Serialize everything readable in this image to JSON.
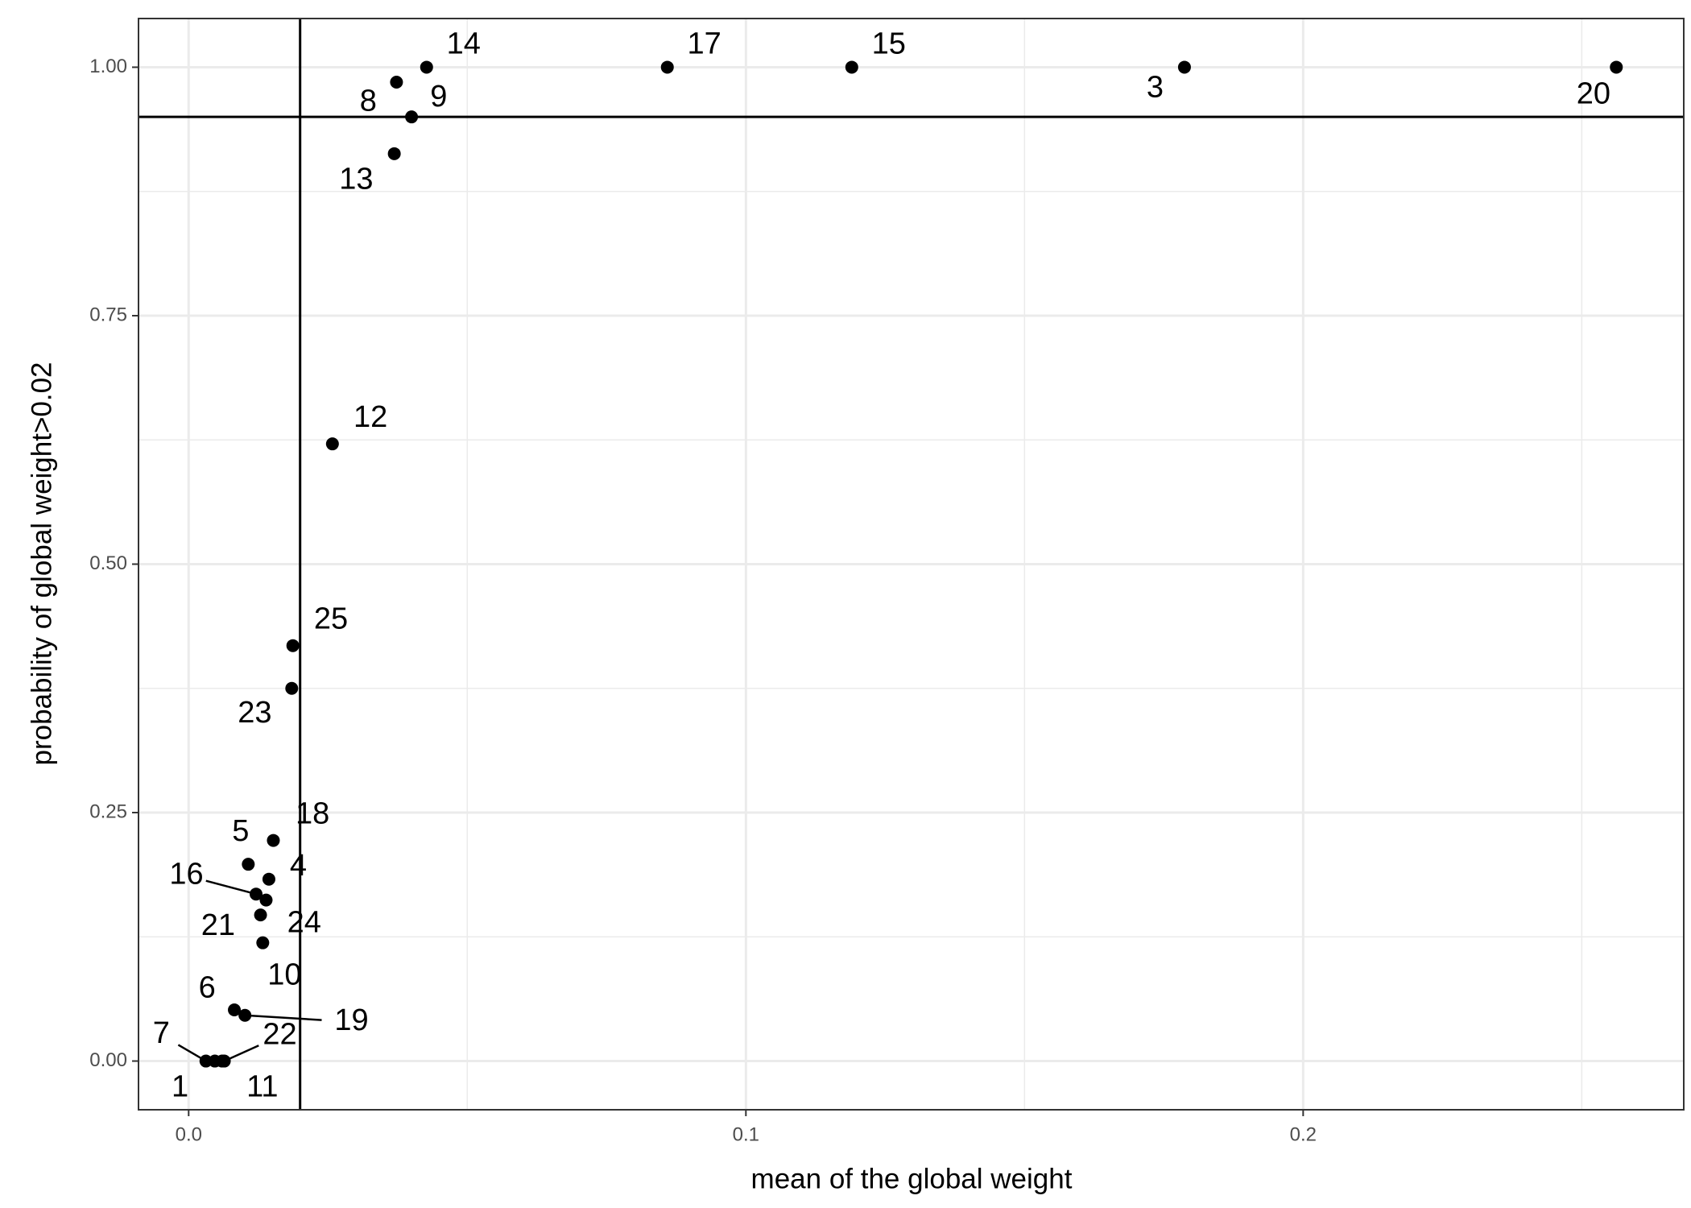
{
  "chart_data": {
    "type": "scatter",
    "x_label": "mean of the global weight",
    "y_label": "probability of global weight>0.02",
    "labels": [
      "1",
      "3",
      "4",
      "5",
      "6",
      "7",
      "8",
      "9",
      "10",
      "11",
      "12",
      "13",
      "14",
      "15",
      "16",
      "17",
      "18",
      "19",
      "20",
      "21",
      "22",
      "23",
      "24",
      "25"
    ],
    "x": [
      0.0047,
      0.1787,
      0.0144,
      0.0107,
      0.0082,
      0.0031,
      0.0373,
      0.04,
      0.0133,
      0.006,
      0.0258,
      0.0369,
      0.0427,
      0.119,
      0.0121,
      0.0859,
      0.0152,
      0.0101,
      0.2562,
      0.0129,
      0.0064,
      0.0185,
      0.0139,
      0.0187
    ],
    "values": [
      0,
      1,
      0.183,
      0.198,
      0.0515,
      0,
      0.985,
      0.95,
      0.119,
      0,
      0.621,
      0.913,
      1,
      1,
      0.168,
      1,
      0.222,
      0.046,
      1,
      0.147,
      0,
      0.375,
      0.162,
      0.418
    ],
    "color": "#000000",
    "reference_lines": {
      "x": 0.02,
      "y": 0.95
    },
    "xlim": [
      -0.009,
      0.2683
    ],
    "ylim": [
      -0.049,
      1.049
    ],
    "xticks": [
      {
        "value": 0,
        "label": "0.0"
      },
      {
        "value": 0.1,
        "label": "0.1"
      },
      {
        "value": 0.2,
        "label": "0.2"
      }
    ],
    "yticks": [
      {
        "value": 0,
        "label": "0.00"
      },
      {
        "value": 0.25,
        "label": "0.25"
      },
      {
        "value": 0.5,
        "label": "0.50"
      },
      {
        "value": 0.75,
        "label": "0.75"
      },
      {
        "value": 1,
        "label": "1.00"
      }
    ],
    "grid": true
  }
}
